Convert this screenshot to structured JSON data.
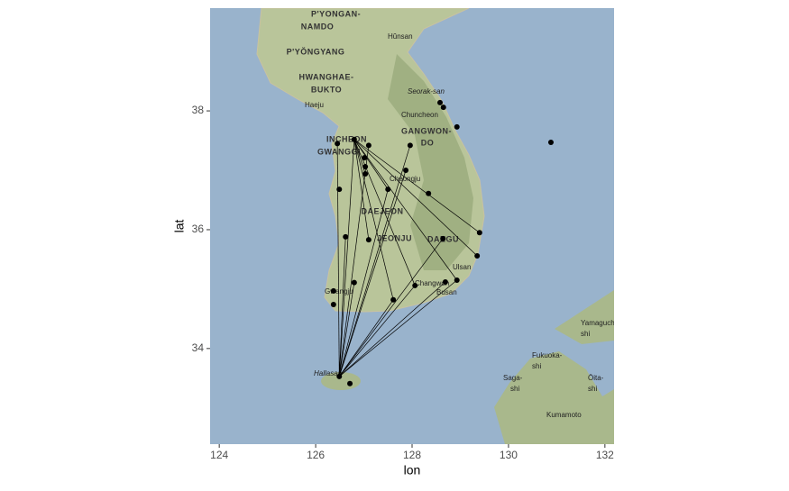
{
  "chart_data": {
    "type": "scatter",
    "x_label": "lon",
    "y_label": "lat",
    "xlim": [
      123.81,
      132.19
    ],
    "ylim": [
      32.39,
      39.73
    ],
    "xticks": [
      124,
      126,
      128,
      130,
      132
    ],
    "yticks": [
      34,
      36,
      38
    ],
    "color": "#000000",
    "line_color": "#000000",
    "x": [
      126.45,
      126.8,
      127.1,
      127.96,
      128.58,
      128.65,
      128.93,
      130.88,
      127.01,
      127.03,
      127.03,
      127.87,
      126.49,
      127.5,
      128.34,
      129.4,
      126.62,
      127.1,
      128.64,
      129.35,
      126.8,
      126.37,
      128.06,
      128.69,
      128.93,
      127.61,
      126.37,
      126.49,
      126.71
    ],
    "y": [
      37.45,
      37.52,
      37.42,
      37.42,
      38.14,
      38.06,
      37.73,
      37.47,
      37.21,
      37.06,
      36.94,
      37.0,
      36.68,
      36.68,
      36.61,
      35.95,
      35.88,
      35.83,
      35.85,
      35.56,
      35.11,
      34.97,
      35.06,
      35.12,
      35.15,
      34.82,
      34.74,
      33.53,
      33.41
    ],
    "segments": {
      "x": [
        126.49,
        126.49,
        126.49,
        126.49,
        126.49,
        126.49,
        126.49,
        126.49,
        126.49,
        126.49,
        126.49,
        126.49,
        126.49,
        126.8,
        126.8,
        126.8,
        126.8,
        126.8,
        126.8,
        126.8,
        126.8
      ],
      "y": [
        33.53,
        33.53,
        33.53,
        33.53,
        33.53,
        33.53,
        33.53,
        33.53,
        33.53,
        33.53,
        33.53,
        33.53,
        33.53,
        37.52,
        37.52,
        37.52,
        37.52,
        37.52,
        37.52,
        37.52,
        37.52
      ],
      "xend": [
        126.45,
        126.8,
        127.1,
        127.96,
        127.5,
        126.62,
        126.8,
        127.61,
        128.06,
        128.69,
        128.93,
        128.64,
        127.87,
        129.4,
        129.35,
        128.93,
        128.06,
        127.61,
        127.5,
        127.03,
        127.1
      ],
      "yend": [
        37.45,
        37.52,
        37.42,
        37.42,
        36.68,
        35.88,
        35.11,
        34.82,
        35.06,
        35.12,
        35.15,
        35.85,
        37.0,
        35.95,
        35.56,
        35.15,
        35.06,
        34.82,
        36.68,
        36.94,
        35.83
      ]
    }
  },
  "map_labels": [
    "P'YONGAN-",
    "NAMDO",
    "Hŭnsan",
    "P'YŎNGYANG",
    "HWANGHAE-",
    "BUKTO",
    "Haeju",
    "Seorak-san",
    "Chuncheon",
    "INCHEON",
    "GWANGGI",
    "GANGWON-",
    "DO",
    "Cheongju",
    "DAEJEON",
    "JEONJU",
    "DAEGU",
    "Ulsan",
    "Busan",
    "Changwon",
    "Gwangju",
    "Hallasan",
    "Fukuoka-",
    "shi",
    "Saga-",
    "shi",
    "Kumamoto",
    "Yamaguchi-",
    "shi",
    "Ōita-",
    "shi"
  ]
}
